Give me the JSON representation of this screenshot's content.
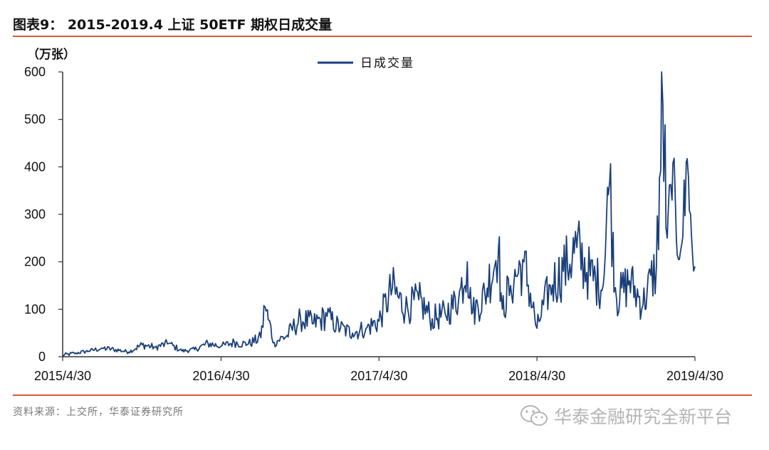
{
  "header": {
    "title": "图表9： 2015-2019.4 上证 50ETF 期权日成交量"
  },
  "footer": {
    "source": "资料来源：上交所，华泰证券研究所"
  },
  "watermark": {
    "text": "华泰金融研究全新平台",
    "icon": "wechat-icon"
  },
  "colors": {
    "series": "#1a3f7a",
    "rule": "#d9573b",
    "axis": "#333333"
  },
  "chart_data": {
    "type": "line",
    "title": "",
    "unit_label": "（万张）",
    "xlabel": "",
    "ylabel": "",
    "ylim": [
      0,
      600
    ],
    "yticks": [
      0,
      100,
      200,
      300,
      400,
      500,
      600
    ],
    "xticks": [
      "2015/4/30",
      "2016/4/30",
      "2017/4/30",
      "2018/4/30",
      "2019/4/30"
    ],
    "x_range": [
      "2015-04-30",
      "2019-04-30"
    ],
    "grid": false,
    "legend": "top-center",
    "series": [
      {
        "name": "日成交量",
        "x": [
          "2015-04-30",
          "2015-05-31",
          "2015-06-30",
          "2015-07-31",
          "2015-08-31",
          "2015-09-30",
          "2015-10-31",
          "2015-11-30",
          "2015-12-31",
          "2016-01-31",
          "2016-02-29",
          "2016-03-31",
          "2016-04-30",
          "2016-05-31",
          "2016-06-30",
          "2016-07-31",
          "2016-08-10",
          "2016-08-31",
          "2016-09-30",
          "2016-10-31",
          "2016-11-30",
          "2016-12-31",
          "2017-01-31",
          "2017-02-28",
          "2017-03-31",
          "2017-04-30",
          "2017-05-31",
          "2017-06-30",
          "2017-07-31",
          "2017-08-31",
          "2017-09-30",
          "2017-10-31",
          "2017-11-20",
          "2017-11-30",
          "2017-12-31",
          "2018-01-31",
          "2018-02-09",
          "2018-02-28",
          "2018-03-31",
          "2018-04-30",
          "2018-05-31",
          "2018-06-30",
          "2018-07-31",
          "2018-08-31",
          "2018-09-30",
          "2018-10-15",
          "2018-10-31",
          "2018-11-30",
          "2018-12-31",
          "2019-01-31",
          "2019-02-15",
          "2019-02-25",
          "2019-03-08",
          "2019-03-31",
          "2019-04-10",
          "2019-04-20",
          "2019-04-30"
        ],
        "values": [
          3,
          8,
          12,
          18,
          15,
          10,
          25,
          20,
          28,
          12,
          15,
          28,
          22,
          30,
          26,
          40,
          104,
          30,
          45,
          80,
          70,
          85,
          60,
          50,
          60,
          75,
          145,
          100,
          120,
          80,
          90,
          120,
          200,
          90,
          130,
          230,
          100,
          150,
          200,
          60,
          150,
          180,
          230,
          170,
          150,
          370,
          120,
          160,
          110,
          190,
          530,
          250,
          330,
          240,
          410,
          300,
          190
        ]
      }
    ]
  }
}
